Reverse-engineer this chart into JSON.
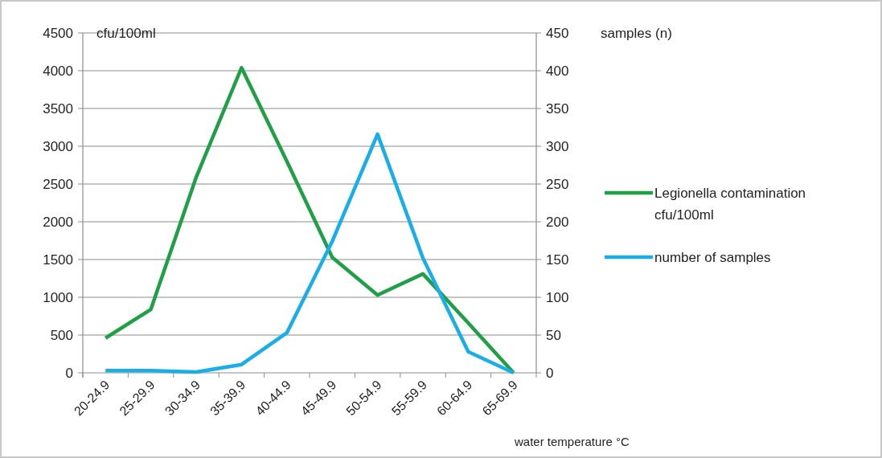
{
  "chart_data": {
    "type": "line",
    "ylabel": "cfu/100ml",
    "y2label": "samples (n)",
    "xlabel": "water temperature °C",
    "categories": [
      "20-24.9",
      "25-29.9",
      "30-34.9",
      "35-39.9",
      "40-44.9",
      "45-49.9",
      "50-54.9",
      "55-59.9",
      "60-64.9",
      "65-69.9"
    ],
    "series": [
      {
        "name": "Legionella contamination cfu/100ml",
        "color": "#1fa046",
        "values": [
          460,
          840,
          2590,
          4040,
          2800,
          1530,
          1030,
          1310,
          660,
          0
        ]
      },
      {
        "name": "number of samples",
        "color": "#1aaee8",
        "axis": "y2",
        "values": [
          3,
          3,
          1,
          11,
          53,
          174,
          316,
          152,
          28,
          0
        ]
      }
    ],
    "ylim": [
      0,
      4500
    ],
    "yticks": [
      0,
      500,
      1000,
      1500,
      2000,
      2500,
      3000,
      3500,
      4000,
      4500
    ],
    "y2lim": [
      0,
      450
    ],
    "y2ticks": [
      0,
      50,
      100,
      150,
      200,
      250,
      300,
      350,
      400,
      450
    ],
    "grid": "y",
    "legend": "right",
    "marker": "none",
    "line_style": "solid"
  }
}
